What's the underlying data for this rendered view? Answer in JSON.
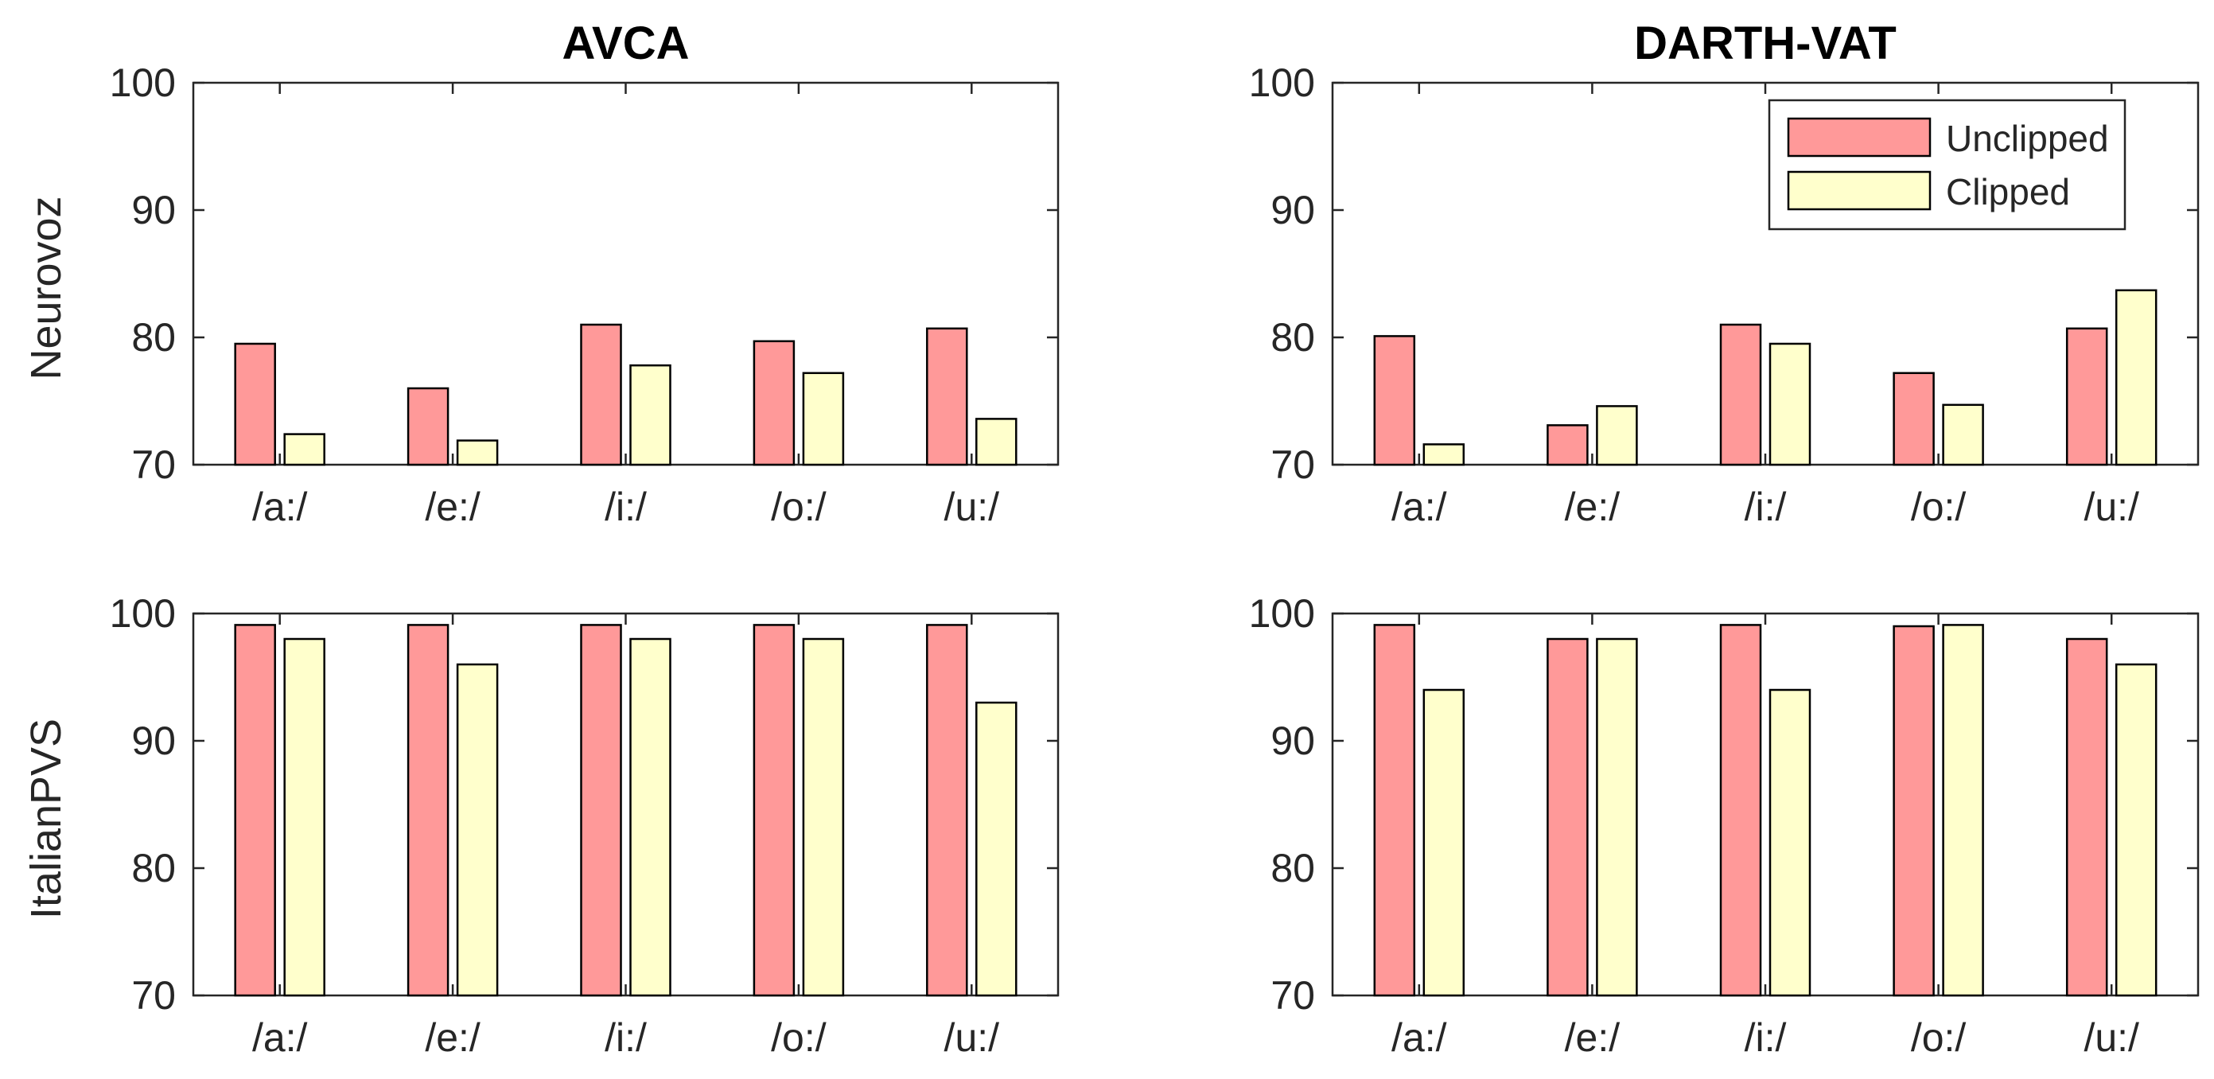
{
  "colors": {
    "unclipped": "#ff9999",
    "clipped": "#ffffcc",
    "axis": "#262626"
  },
  "legend": {
    "unclipped": "Unclipped",
    "clipped": "Clipped"
  },
  "columns": [
    "AVCA",
    "DARTH-VAT"
  ],
  "rows": [
    "Neurovoz",
    "ItalianPVS"
  ],
  "chart_data": [
    {
      "type": "bar",
      "title": "AVCA",
      "ylabel": "Neurovoz",
      "categories": [
        "/a:/",
        "/e:/",
        "/i:/",
        "/o:/",
        "/u:/"
      ],
      "ylim": [
        70,
        100
      ],
      "yticks": [
        "70",
        "80",
        "90",
        "100"
      ],
      "series": [
        {
          "name": "Unclipped",
          "values": [
            79.5,
            76.0,
            81.0,
            79.7,
            80.7
          ]
        },
        {
          "name": "Clipped",
          "values": [
            72.4,
            71.9,
            77.8,
            77.2,
            73.6
          ]
        }
      ],
      "legend": false
    },
    {
      "type": "bar",
      "title": "DARTH-VAT",
      "ylabel": "",
      "categories": [
        "/a:/",
        "/e:/",
        "/i:/",
        "/o:/",
        "/u:/"
      ],
      "ylim": [
        70,
        100
      ],
      "yticks": [
        "70",
        "80",
        "90",
        "100"
      ],
      "series": [
        {
          "name": "Unclipped",
          "values": [
            80.1,
            73.1,
            81.0,
            77.2,
            80.7
          ]
        },
        {
          "name": "Clipped",
          "values": [
            71.6,
            74.6,
            79.5,
            74.7,
            83.7
          ]
        }
      ],
      "legend": "top-right"
    },
    {
      "type": "bar",
      "title": "",
      "ylabel": "ItalianPVS",
      "categories": [
        "/a:/",
        "/e:/",
        "/i:/",
        "/o:/",
        "/u:/"
      ],
      "ylim": [
        70,
        100
      ],
      "yticks": [
        "70",
        "80",
        "90",
        "100"
      ],
      "series": [
        {
          "name": "Unclipped",
          "values": [
            99.1,
            99.1,
            99.1,
            99.1,
            99.1
          ]
        },
        {
          "name": "Clipped",
          "values": [
            98.0,
            96.0,
            98.0,
            98.0,
            93.0
          ]
        }
      ],
      "legend": false
    },
    {
      "type": "bar",
      "title": "",
      "ylabel": "",
      "categories": [
        "/a:/",
        "/e:/",
        "/i:/",
        "/o:/",
        "/u:/"
      ],
      "ylim": [
        70,
        100
      ],
      "yticks": [
        "70",
        "80",
        "90",
        "100"
      ],
      "series": [
        {
          "name": "Unclipped",
          "values": [
            99.1,
            98.0,
            99.1,
            99.0,
            98.0
          ]
        },
        {
          "name": "Clipped",
          "values": [
            94.0,
            98.0,
            94.0,
            99.1,
            96.0
          ]
        }
      ],
      "legend": false
    }
  ]
}
